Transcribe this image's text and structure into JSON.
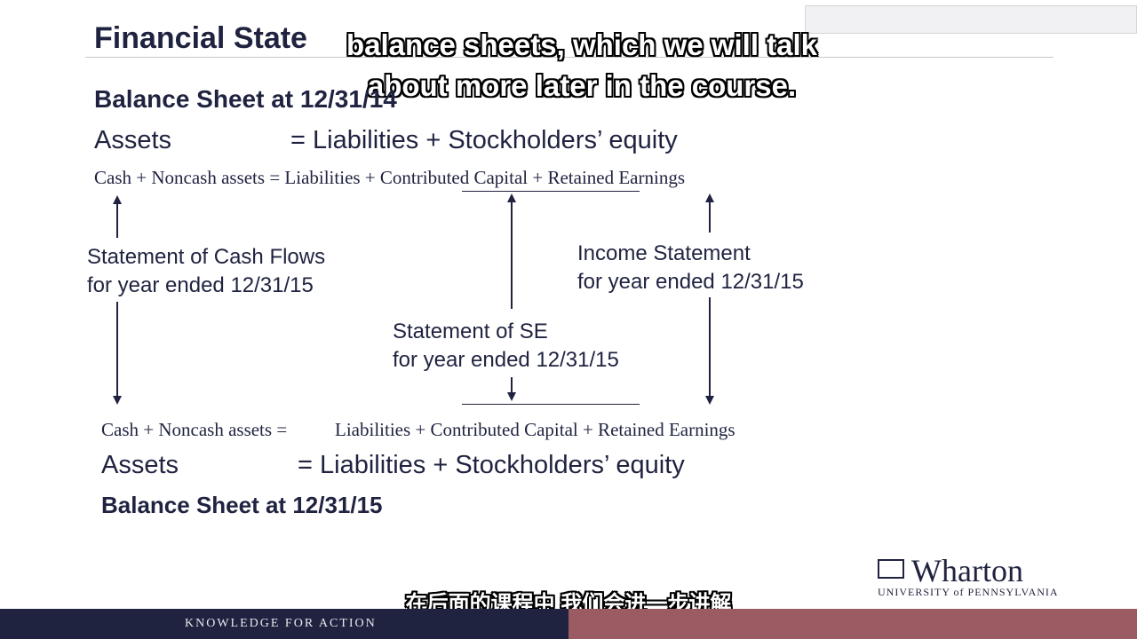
{
  "slide": {
    "title": "Financial State",
    "balance_sheet_start": "Balance Sheet at 12/31/14",
    "balance_sheet_end": "Balance Sheet at 12/31/15",
    "top_equation_left": "Assets",
    "top_equation_right": "=  Liabilities + Stockholders’ equity",
    "top_detail_equation": "Cash + Noncash assets = Liabilities + Contributed Capital + Retained Earnings",
    "bottom_detail_left": "Cash + Noncash assets  =",
    "bottom_detail_right": "Liabilities + Contributed Capital + Retained Earnings",
    "bottom_equation_left": "Assets",
    "bottom_equation_right": "=  Liabilities + Stockholders’ equity",
    "cash_flows_line1": "Statement of Cash Flows",
    "cash_flows_line2": "for year ended 12/31/15",
    "income_line1": "Income Statement",
    "income_line2": "for year ended 12/31/15",
    "se_line1": "Statement of SE",
    "se_line2": "for year ended 12/31/15"
  },
  "captions": {
    "english_line1": "balance sheets, which we will talk",
    "english_line2": "about more later in the course.",
    "chinese": "在后面的课程中 我们会进一步讲解"
  },
  "branding": {
    "logo_word": "Wharton",
    "logo_sub": "UNIVERSITY of PENNSYLVANIA",
    "footer_tagline": "KNOWLEDGE FOR ACTION"
  },
  "colors": {
    "navy": "#1f2340",
    "footer_rose": "#9b5b62"
  }
}
